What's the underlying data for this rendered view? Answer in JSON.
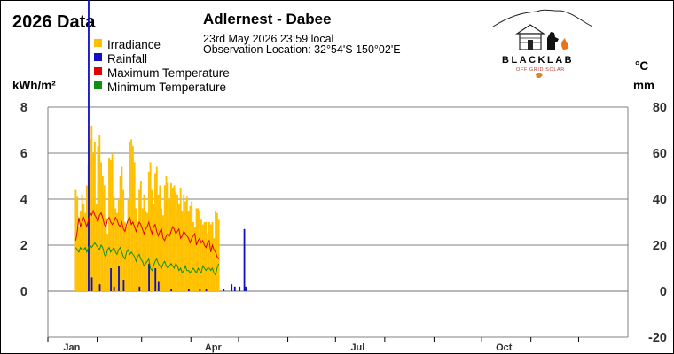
{
  "header": {
    "year_title": "2026 Data",
    "station_title": "Adlernest - Dabee",
    "timestamp": "23rd May 2026  23:59 local",
    "location": "Observation Location: 32°54'S 150°02'E",
    "logo_text": "BLACKLAB",
    "logo_subtext": "OFF GRID SOLAR"
  },
  "colors": {
    "irradiance": "#ffc000",
    "rainfall": "#1010c0",
    "max_temp": "#e00000",
    "min_temp": "#109010",
    "grid": "#808080",
    "axis_text": "#303030"
  },
  "chart_data": {
    "type": "bar",
    "title": "2026 Data",
    "legend": [
      "Irradiance",
      "Rainfall",
      "Maximum Temperature",
      "Minimum Temperature"
    ],
    "legend_position": "top-left",
    "left_axis": {
      "label": "kWh/m²",
      "ylim": [
        0,
        8
      ],
      "ticks": [
        "8",
        "6",
        "4",
        "2",
        "0"
      ]
    },
    "right_axis": {
      "label_top": "°C",
      "label_bottom": "mm",
      "ylim": [
        -20,
        80
      ],
      "ticks": [
        "80",
        "60",
        "40",
        "20",
        "0",
        "-20"
      ]
    },
    "x_axis": {
      "ticks": [
        "Jan",
        "Apr",
        "Jul",
        "Oct"
      ],
      "start_day": 1,
      "end_day": 365
    },
    "grid": true,
    "start_date": "2026-01-01",
    "irradiance_kwh": [
      4.4,
      4.1,
      2.8,
      3.5,
      4.2,
      3.8,
      3.4,
      4.6,
      5.5,
      6.6,
      7.2,
      6.0,
      6.5,
      3.8,
      6.3,
      6.8,
      5.6,
      5.0,
      4.6,
      3.2,
      2.5,
      5.8,
      5.7,
      6.0,
      4.1,
      3.6,
      3.4,
      4.0,
      5.0,
      5.4,
      4.4,
      3.0,
      2.8,
      4.0,
      6.5,
      6.6,
      6.3,
      5.6,
      3.6,
      3.0,
      4.4,
      4.8,
      3.6,
      4.2,
      3.5,
      3.4,
      5.2,
      5.6,
      4.4,
      3.8,
      5.1,
      5.4,
      4.2,
      4.6,
      3.6,
      3.3,
      4.6,
      5.0,
      4.7,
      4.0,
      4.7,
      4.5,
      4.6,
      4.3,
      4.2,
      3.8,
      4.5,
      3.5,
      4.2,
      3.9,
      4.1,
      3.5,
      3.7,
      3.9,
      3.0,
      2.8,
      3.6,
      3.6,
      3.5,
      3.1,
      2.9,
      3.0,
      3.0,
      2.5,
      3.0,
      2.9,
      3.0,
      2.3,
      3.5,
      3.4,
      3.1
    ],
    "rainfall_mm": [
      0,
      0,
      0,
      0,
      0,
      0,
      0,
      0,
      0,
      0,
      0,
      0,
      0,
      0,
      0,
      0,
      0,
      0,
      0,
      0,
      0,
      0,
      0,
      0,
      0,
      0,
      0,
      0,
      0,
      0,
      0,
      0,
      0,
      0,
      0,
      0,
      0,
      0,
      0,
      0,
      0,
      0,
      0,
      0,
      0,
      0,
      0,
      0,
      0,
      0,
      0,
      0,
      0,
      0,
      0,
      0,
      0,
      0,
      0,
      0,
      0,
      0,
      0,
      0,
      0,
      0,
      0,
      0,
      0,
      0,
      0,
      0,
      0,
      0,
      0,
      0,
      0,
      0,
      0,
      0,
      0,
      0,
      0,
      0,
      0,
      0,
      0,
      0,
      0,
      0,
      0
    ],
    "rain_events": [
      {
        "day": 8,
        "mm": 160
      },
      {
        "day": 10,
        "mm": 6
      },
      {
        "day": 15,
        "mm": 3
      },
      {
        "day": 22,
        "mm": 10
      },
      {
        "day": 24,
        "mm": 2
      },
      {
        "day": 27,
        "mm": 11
      },
      {
        "day": 30,
        "mm": 5
      },
      {
        "day": 40,
        "mm": 2
      },
      {
        "day": 46,
        "mm": 12
      },
      {
        "day": 50,
        "mm": 10
      },
      {
        "day": 52,
        "mm": 4
      },
      {
        "day": 60,
        "mm": 1
      },
      {
        "day": 71,
        "mm": 1
      },
      {
        "day": 78,
        "mm": 1
      },
      {
        "day": 82,
        "mm": 1
      },
      {
        "day": 93,
        "mm": 1
      },
      {
        "day": 98,
        "mm": 3
      },
      {
        "day": 100,
        "mm": 2
      },
      {
        "day": 103,
        "mm": 2
      },
      {
        "day": 106,
        "mm": 27
      },
      {
        "day": 107,
        "mm": 2
      }
    ],
    "max_temp_c": [
      22,
      26,
      32,
      28,
      30,
      32,
      30,
      28,
      31,
      34,
      33,
      35,
      33,
      32,
      30,
      33,
      34,
      32,
      29,
      28,
      31,
      32,
      30,
      29,
      30,
      32,
      31,
      29,
      28,
      30,
      27,
      26,
      29,
      31,
      32,
      29,
      30,
      28,
      26,
      28,
      30,
      29,
      27,
      25,
      27,
      28,
      30,
      27,
      25,
      28,
      29,
      26,
      24,
      26,
      27,
      23,
      22,
      24,
      25,
      24,
      26,
      28,
      27,
      25,
      26,
      27,
      23,
      24,
      26,
      25,
      24,
      23,
      21,
      23,
      24,
      25,
      20,
      22,
      23,
      21,
      22,
      20,
      19,
      21,
      22,
      17,
      20,
      18,
      17,
      15,
      14
    ],
    "min_temp_c": [
      19,
      18,
      17,
      19,
      18,
      18,
      19,
      17,
      19,
      20,
      19,
      20,
      21,
      20,
      19,
      18,
      20,
      19,
      16,
      15,
      18,
      19,
      17,
      18,
      19,
      17,
      16,
      18,
      19,
      17,
      15,
      14,
      17,
      18,
      16,
      17,
      16,
      15,
      13,
      15,
      16,
      14,
      13,
      11,
      12,
      13,
      14,
      10,
      9,
      11,
      13,
      14,
      12,
      11,
      10,
      12,
      13,
      11,
      10,
      11,
      12,
      11,
      10,
      12,
      11,
      9,
      10,
      8,
      9,
      11,
      9,
      9,
      8,
      9,
      10,
      9,
      8,
      10,
      9,
      8,
      11,
      10,
      9,
      10,
      10,
      9,
      10,
      8,
      7,
      10,
      12
    ]
  }
}
